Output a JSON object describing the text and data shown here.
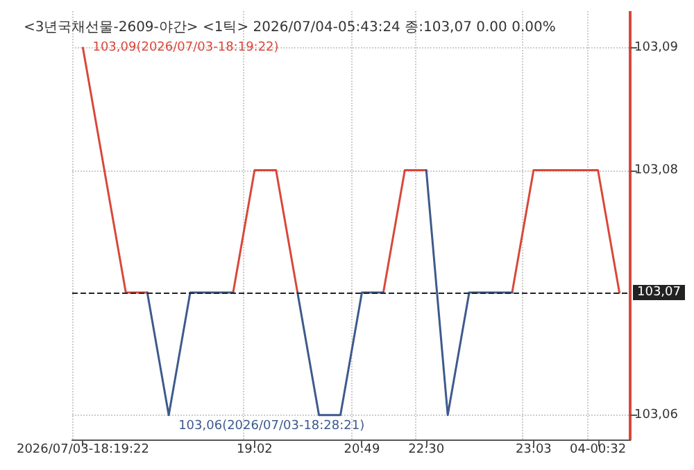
{
  "chart_data": {
    "type": "line",
    "title": "<3년국채선물-2609-야간> <1틱> 2026/07/04-05:43:24 종:103,07 0.00 0.00%",
    "categories": [
      "2026/07/03-18:19:22",
      null,
      null,
      null,
      null,
      null,
      null,
      null,
      "19:02",
      null,
      null,
      null,
      null,
      "20:49",
      null,
      null,
      "22:30",
      null,
      null,
      null,
      null,
      "23:03",
      null,
      null,
      "04-00:32",
      null
    ],
    "series": [
      {
        "color": "#d9473a",
        "values": [
          103.09,
          103.08,
          103.07,
          103.07,
          null,
          null,
          null,
          103.07,
          103.08,
          103.08,
          103.07,
          null,
          null,
          null,
          103.07,
          103.08,
          103.08,
          null,
          null,
          null,
          103.07,
          103.08,
          103.08,
          103.08,
          103.08,
          103.07
        ],
        "value_labels": [
          "103,09(2026/07/03-18:19:22)",
          null,
          null,
          null,
          null,
          null,
          null,
          null,
          null,
          null,
          null,
          null,
          null,
          null,
          null,
          null,
          null,
          null,
          null,
          null,
          null,
          null,
          null,
          null,
          null,
          null
        ]
      },
      {
        "color": "#3d5a8c",
        "values": [
          null,
          null,
          null,
          103.07,
          103.06,
          103.07,
          103.07,
          103.07,
          null,
          null,
          103.07,
          103.06,
          103.06,
          103.07,
          103.07,
          null,
          103.08,
          103.06,
          103.07,
          103.07,
          103.07,
          null,
          null,
          null,
          null,
          null
        ],
        "value_labels": [
          null,
          null,
          null,
          null,
          "103,06(2026/07/03-18:28:21)",
          null,
          null,
          null,
          null,
          null,
          null,
          null,
          null,
          null,
          null,
          null,
          null,
          null,
          null,
          null,
          null,
          null,
          null,
          null,
          null,
          null
        ]
      }
    ],
    "ylim": [
      103.058,
      103.093
    ],
    "yticks": [
      {
        "value": 103.06,
        "label": "103,06"
      },
      {
        "value": 103.08,
        "label": "103,08"
      },
      {
        "value": 103.09,
        "label": "103,09"
      }
    ],
    "ref_lines": [
      {
        "axis": "y",
        "value": 103.07,
        "label": "103,07",
        "color": "#222222",
        "line_style": "dashed"
      }
    ],
    "grid": true
  }
}
